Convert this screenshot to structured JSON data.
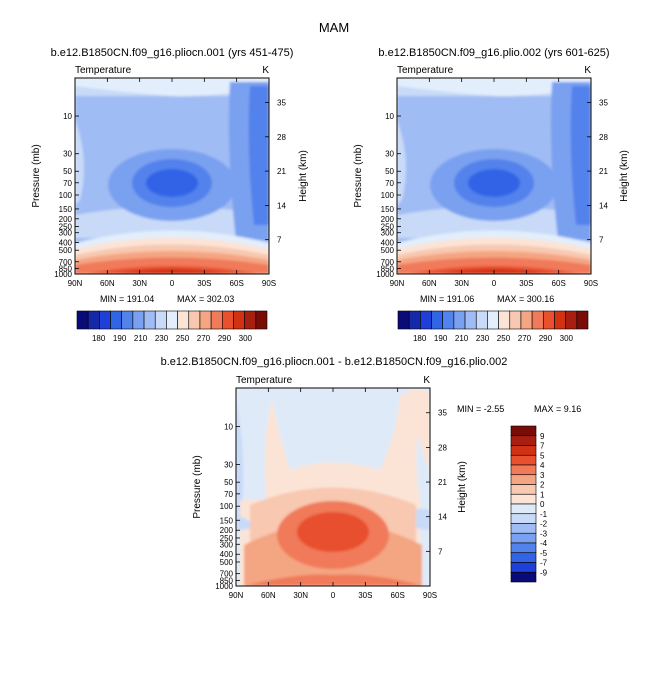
{
  "page_title": "MAM",
  "colors": {
    "abs": [
      "#0a0a78",
      "#1428a8",
      "#1e40d8",
      "#3264e6",
      "#5282ec",
      "#7aa0f0",
      "#a0bcf4",
      "#c8daf8",
      "#e2eefb",
      "#fbe4d6",
      "#f8c8b0",
      "#f4a582",
      "#f07a5a",
      "#e8502e",
      "#d23214",
      "#a81e10",
      "#7a0c08"
    ],
    "diff": [
      "#0a0a78",
      "#1e40d8",
      "#3264e6",
      "#5282ec",
      "#7aa0f0",
      "#a0bcf4",
      "#c8daf8",
      "#dfeaf8",
      "#fbe4d6",
      "#f8c8b0",
      "#f4a582",
      "#f07a5a",
      "#e8502e",
      "#d23214",
      "#a81e10",
      "#7a0c08"
    ]
  },
  "chart_data": [
    {
      "type": "heatmap",
      "title": "b.e12.B1850CN.f09_g16.pliocn.001 (yrs 451-475)",
      "variable_label": "Temperature",
      "units": "K",
      "xlabel": "",
      "ylabel": "Pressure (mb)",
      "y2label": "Height (km)",
      "x_tick_labels": [
        "90N",
        "60N",
        "30N",
        "0",
        "30S",
        "60S",
        "90S"
      ],
      "x_tick_values": [
        90,
        60,
        30,
        0,
        -30,
        -60,
        -90
      ],
      "y_tick_labels": [
        "10",
        "30",
        "50",
        "70",
        "100",
        "150",
        "200",
        "250",
        "300",
        "400",
        "500",
        "700",
        "850",
        "1000"
      ],
      "y_tick_values": [
        10,
        30,
        50,
        70,
        100,
        150,
        200,
        250,
        300,
        400,
        500,
        700,
        850,
        1000
      ],
      "height_tick_labels": [
        "35",
        "28",
        "21",
        "14",
        "7"
      ],
      "height_tick_values": [
        35,
        28,
        21,
        14,
        7
      ],
      "min": 191.04,
      "max": 302.03,
      "min_label": "MIN = 191.04",
      "max_label": "MAX = 302.03",
      "colorbar_labels": [
        "180",
        "190",
        "210",
        "230",
        "250",
        "270",
        "290",
        "300"
      ]
    },
    {
      "type": "heatmap",
      "title": "b.e12.B1850CN.f09_g16.plio.002 (yrs 601-625)",
      "variable_label": "Temperature",
      "units": "K",
      "xlabel": "",
      "ylabel": "Pressure (mb)",
      "y2label": "Height (km)",
      "x_tick_labels": [
        "90N",
        "60N",
        "30N",
        "0",
        "30S",
        "60S",
        "90S"
      ],
      "x_tick_values": [
        90,
        60,
        30,
        0,
        -30,
        -60,
        -90
      ],
      "y_tick_labels": [
        "10",
        "30",
        "50",
        "70",
        "100",
        "150",
        "200",
        "250",
        "300",
        "400",
        "500",
        "700",
        "850",
        "1000"
      ],
      "y_tick_values": [
        10,
        30,
        50,
        70,
        100,
        150,
        200,
        250,
        300,
        400,
        500,
        700,
        850,
        1000
      ],
      "height_tick_labels": [
        "35",
        "28",
        "21",
        "14",
        "7"
      ],
      "height_tick_values": [
        35,
        28,
        21,
        14,
        7
      ],
      "min": 191.06,
      "max": 300.16,
      "min_label": "MIN = 191.06",
      "max_label": "MAX = 300.16",
      "colorbar_labels": [
        "180",
        "190",
        "210",
        "230",
        "250",
        "270",
        "290",
        "300"
      ]
    },
    {
      "type": "heatmap",
      "title": "b.e12.B1850CN.f09_g16.pliocn.001 - b.e12.B1850CN.f09_g16.plio.002",
      "variable_label": "Temperature",
      "units": "K",
      "xlabel": "",
      "ylabel": "Pressure (mb)",
      "y2label": "Height (km)",
      "x_tick_labels": [
        "90N",
        "60N",
        "30N",
        "0",
        "30S",
        "60S",
        "90S"
      ],
      "x_tick_values": [
        90,
        60,
        30,
        0,
        -30,
        -60,
        -90
      ],
      "y_tick_labels": [
        "10",
        "30",
        "50",
        "70",
        "100",
        "150",
        "200",
        "250",
        "300",
        "400",
        "500",
        "700",
        "850",
        "1000"
      ],
      "y_tick_values": [
        10,
        30,
        50,
        70,
        100,
        150,
        200,
        250,
        300,
        400,
        500,
        700,
        850,
        1000
      ],
      "height_tick_labels": [
        "35",
        "28",
        "21",
        "14",
        "7"
      ],
      "height_tick_values": [
        35,
        28,
        21,
        14,
        7
      ],
      "min": -2.55,
      "max": 9.16,
      "min_label": "MIN =  -2.55",
      "max_label": "MAX =  9.16",
      "colorbar_labels": [
        "9",
        "7",
        "5",
        "4",
        "3",
        "2",
        "1",
        "0",
        "-1",
        "-2",
        "-3",
        "-4",
        "-5",
        "-7",
        "-9"
      ]
    }
  ]
}
